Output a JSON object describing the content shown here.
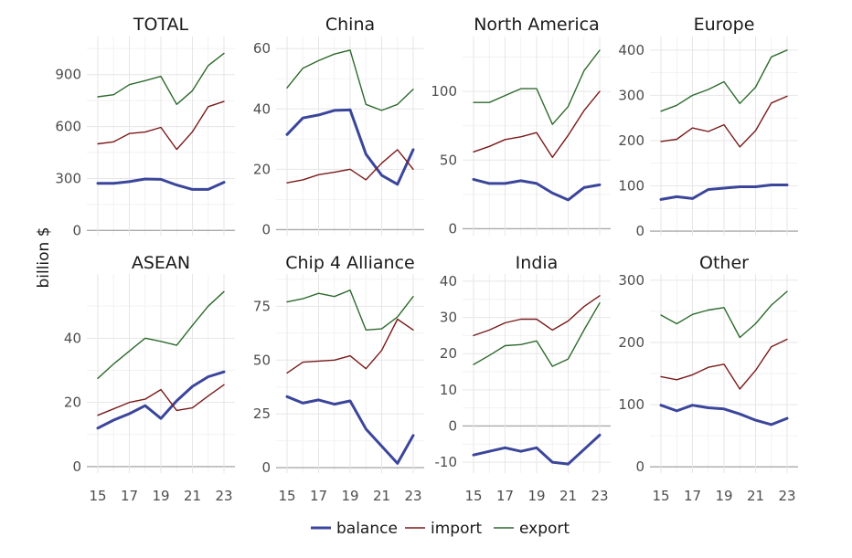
{
  "chart_data": {
    "type": "line",
    "ylabel": "billion $",
    "x": [
      15,
      16,
      17,
      18,
      19,
      20,
      21,
      22,
      23
    ],
    "xticks": [
      15,
      17,
      19,
      21,
      23
    ],
    "legend": {
      "position": "bottom",
      "entries": [
        "balance",
        "import",
        "export"
      ]
    },
    "colors": {
      "balance": "#3b469b",
      "import": "#7a1a1a",
      "export": "#2d6a2d"
    },
    "grid": true,
    "panels": [
      {
        "title": "TOTAL",
        "ylim": [
          -30,
          1120
        ],
        "yticks": [
          0,
          300,
          600,
          900
        ],
        "series": [
          {
            "name": "balance",
            "values": [
              272,
              272,
              282,
              297,
              295,
              262,
              237,
              237,
              278
            ]
          },
          {
            "name": "import",
            "values": [
              500,
              512,
              560,
              568,
              595,
              468,
              570,
              715,
              745
            ]
          },
          {
            "name": "export",
            "values": [
              772,
              784,
              842,
              865,
              890,
              728,
              807,
              952,
              1023
            ]
          }
        ]
      },
      {
        "title": "China",
        "ylim": [
          -2,
          64
        ],
        "yticks": [
          0,
          20,
          40,
          60
        ],
        "series": [
          {
            "name": "balance",
            "values": [
              31.5,
              37,
              38,
              39.5,
              39.7,
              25,
              18,
              15,
              26.5
            ]
          },
          {
            "name": "import",
            "values": [
              15.5,
              16.5,
              18.2,
              19,
              20,
              16.5,
              22,
              26.5,
              20
            ]
          },
          {
            "name": "export",
            "values": [
              47,
              53.5,
              56,
              58.2,
              59.5,
              41.5,
              39.5,
              41.5,
              46.5
            ]
          }
        ]
      },
      {
        "title": "North America",
        "ylim": [
          -5,
          140
        ],
        "yticks": [
          0,
          50,
          100
        ],
        "series": [
          {
            "name": "balance",
            "values": [
              36,
              33,
              33,
              35,
              33,
              26,
              21,
              30,
              32
            ]
          },
          {
            "name": "import",
            "values": [
              56,
              60,
              65,
              67,
              70,
              52,
              68,
              86,
              100
            ]
          },
          {
            "name": "export",
            "values": [
              92,
              92,
              97,
              102,
              102,
              76,
              89,
              115,
              130
            ]
          }
        ]
      },
      {
        "title": "Europe",
        "ylim": [
          -10,
          430
        ],
        "yticks": [
          0,
          100,
          200,
          300,
          400
        ],
        "series": [
          {
            "name": "balance",
            "values": [
              70,
              76,
              72,
              92,
              95,
              98,
              98,
              102,
              102
            ]
          },
          {
            "name": "import",
            "values": [
              198,
              203,
              228,
              220,
              235,
              186,
              222,
              283,
              298
            ]
          },
          {
            "name": "export",
            "values": [
              265,
              278,
              300,
              313,
              330,
              282,
              318,
              385,
              400
            ]
          }
        ]
      },
      {
        "title": "ASEAN",
        "ylim": [
          -2,
          60
        ],
        "yticks": [
          0,
          20,
          40
        ],
        "series": [
          {
            "name": "balance",
            "values": [
              12,
              14.5,
              16.5,
              19,
              15,
              20.5,
              25,
              28,
              29.5
            ]
          },
          {
            "name": "import",
            "values": [
              16,
              18,
              20,
              21,
              24,
              17.5,
              18.3,
              22,
              25.5
            ]
          },
          {
            "name": "export",
            "values": [
              27.5,
              32,
              36,
              40,
              39,
              37.8,
              44,
              50,
              54.5
            ]
          }
        ]
      },
      {
        "title": "Chip 4 Alliance",
        "ylim": [
          -2.5,
          90
        ],
        "yticks": [
          0,
          25,
          50,
          75
        ],
        "series": [
          {
            "name": "balance",
            "values": [
              33,
              30,
              31.5,
              29.5,
              31,
              18,
              10,
              2,
              15
            ]
          },
          {
            "name": "import",
            "values": [
              44,
              49,
              49.5,
              50,
              52,
              46,
              54.5,
              69,
              64
            ]
          },
          {
            "name": "export",
            "values": [
              77,
              78.5,
              81,
              79.5,
              82.5,
              64,
              64.5,
              70,
              79.5
            ]
          }
        ]
      },
      {
        "title": "India",
        "ylim": [
          -13,
          42
        ],
        "yticks": [
          -10,
          0,
          10,
          20,
          30,
          40
        ],
        "series": [
          {
            "name": "balance",
            "values": [
              -8,
              -7,
              -6,
              -7,
              -6,
              -10,
              -10.5,
              -6.5,
              -2.5
            ]
          },
          {
            "name": "import",
            "values": [
              25,
              26.5,
              28.5,
              29.5,
              29.5,
              26.5,
              29,
              33,
              36
            ]
          },
          {
            "name": "export",
            "values": [
              17,
              19.5,
              22.2,
              22.5,
              23.5,
              16.5,
              18.5,
              26.5,
              34
            ]
          }
        ]
      },
      {
        "title": "Other",
        "ylim": [
          -10,
          310
        ],
        "yticks": [
          0,
          100,
          200,
          300
        ],
        "series": [
          {
            "name": "balance",
            "values": [
              99,
              90,
              99,
              95,
              93,
              85,
              75,
              68,
              78
            ]
          },
          {
            "name": "import",
            "values": [
              145,
              140,
              148,
              160,
              165,
              125,
              155,
              193,
              205
            ]
          },
          {
            "name": "export",
            "values": [
              244,
              230,
              245,
              252,
              256,
              208,
              230,
              260,
              282
            ]
          }
        ]
      }
    ]
  }
}
